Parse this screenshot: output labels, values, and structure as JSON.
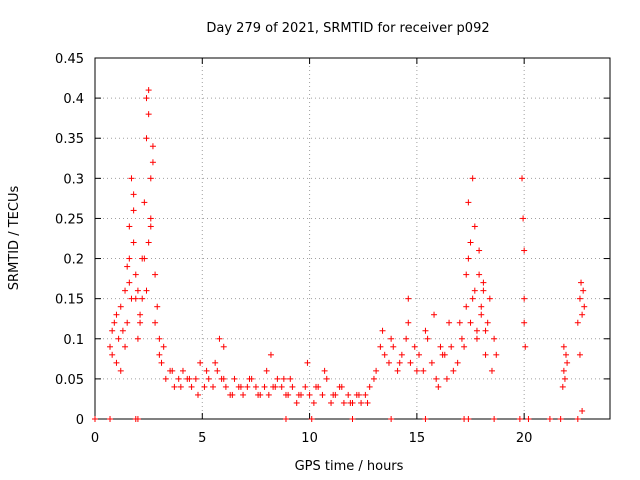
{
  "chart_data": {
    "type": "scatter",
    "title": "Day 279 of 2021, SRMTID for receiver p092",
    "xlabel": "GPS time / hours",
    "ylabel": "SRMTID / TECUs",
    "xlim": [
      0,
      24
    ],
    "ylim": [
      0,
      0.45
    ],
    "grid": true,
    "marker": "+",
    "marker_color": "#ff0000",
    "x_ticks": [
      0,
      5,
      10,
      15,
      20
    ],
    "x_tick_labels": [
      "0",
      "5",
      "10",
      "15",
      "20"
    ],
    "y_ticks": [
      0,
      0.05,
      0.1,
      0.15,
      0.2,
      0.25,
      0.3,
      0.35,
      0.4,
      0.45
    ],
    "y_tick_labels": [
      "0",
      "0.05",
      "0.1",
      "0.15",
      "0.2",
      "0.25",
      "0.3",
      "0.35",
      "0.4",
      "0.45"
    ],
    "series": [
      {
        "name": "SRMTID",
        "x": [
          0.7,
          0.8,
          0.9,
          1.0,
          1.1,
          1.2,
          1.3,
          1.4,
          1.5,
          1.6,
          1.7,
          1.8,
          1.9,
          2.0,
          2.1,
          2.2,
          2.3,
          2.4,
          2.5,
          2.6,
          2.7,
          2.8,
          2.9,
          3.0,
          0.8,
          1.0,
          1.2,
          1.4,
          1.6,
          1.8,
          2.0,
          2.2,
          2.4,
          2.6,
          2.8,
          3.0,
          1.5,
          1.7,
          1.9,
          2.1,
          2.3,
          2.5,
          2.7,
          1.6,
          1.8,
          2.4,
          2.5,
          2.6,
          3.1,
          3.3,
          3.5,
          3.7,
          3.9,
          4.1,
          4.3,
          4.5,
          4.7,
          4.9,
          5.1,
          5.3,
          5.5,
          5.7,
          5.9,
          6.1,
          6.3,
          6.5,
          6.7,
          6.9,
          7.1,
          7.3,
          7.5,
          7.7,
          7.9,
          8.1,
          8.3,
          8.5,
          8.7,
          8.9,
          3.2,
          3.6,
          4.0,
          4.4,
          4.8,
          5.2,
          5.6,
          6.0,
          6.4,
          6.8,
          7.2,
          7.6,
          8.0,
          8.4,
          8.8,
          5.8,
          6.0,
          8.2,
          9.0,
          9.2,
          9.4,
          9.6,
          9.8,
          10.0,
          10.2,
          10.4,
          10.6,
          10.8,
          11.0,
          11.2,
          11.4,
          11.6,
          11.8,
          12.0,
          12.2,
          12.4,
          12.6,
          12.8,
          13.0,
          9.1,
          9.5,
          9.9,
          10.3,
          10.7,
          11.1,
          11.5,
          11.9,
          12.3,
          12.7,
          13.1,
          13.3,
          13.5,
          13.7,
          13.9,
          14.1,
          14.3,
          14.5,
          14.7,
          14.9,
          15.1,
          15.3,
          15.5,
          15.7,
          15.9,
          16.1,
          16.3,
          16.5,
          16.7,
          16.9,
          17.1,
          13.4,
          13.8,
          14.2,
          14.6,
          15.0,
          15.4,
          15.8,
          16.2,
          16.6,
          17.0,
          14.6,
          16.0,
          16.4,
          17.2,
          17.3,
          17.4,
          17.5,
          17.6,
          17.7,
          17.8,
          17.9,
          18.0,
          18.1,
          18.2,
          18.3,
          18.4,
          18.5,
          18.6,
          18.7,
          17.3,
          17.4,
          17.5,
          17.6,
          17.7,
          17.8,
          17.9,
          18.0,
          18.1,
          18.2,
          19.9,
          19.95,
          20.0,
          20.0,
          20.0,
          20.05,
          21.8,
          21.85,
          21.9,
          21.95,
          22.0,
          21.85,
          22.5,
          22.6,
          22.65,
          22.7,
          22.75,
          22.8,
          22.6,
          22.7,
          0.0,
          0.7,
          1.9,
          2.0,
          8.9,
          10.1,
          12.0,
          13.8,
          15.4,
          17.2,
          17.4,
          18.6,
          19.8,
          20.2,
          21.2,
          21.7,
          22.5
        ],
        "y": [
          0.09,
          0.08,
          0.12,
          0.07,
          0.1,
          0.14,
          0.11,
          0.16,
          0.12,
          0.2,
          0.15,
          0.22,
          0.18,
          0.16,
          0.12,
          0.15,
          0.2,
          0.16,
          0.38,
          0.25,
          0.32,
          0.18,
          0.14,
          0.1,
          0.11,
          0.13,
          0.06,
          0.09,
          0.24,
          0.28,
          0.1,
          0.2,
          0.35,
          0.3,
          0.12,
          0.08,
          0.19,
          0.3,
          0.15,
          0.13,
          0.27,
          0.41,
          0.34,
          0.17,
          0.26,
          0.4,
          0.22,
          0.24,
          0.07,
          0.05,
          0.06,
          0.04,
          0.05,
          0.06,
          0.05,
          0.04,
          0.05,
          0.07,
          0.04,
          0.05,
          0.04,
          0.06,
          0.05,
          0.04,
          0.03,
          0.05,
          0.04,
          0.03,
          0.04,
          0.05,
          0.04,
          0.03,
          0.04,
          0.03,
          0.04,
          0.05,
          0.04,
          0.03,
          0.09,
          0.06,
          0.04,
          0.05,
          0.03,
          0.06,
          0.07,
          0.05,
          0.03,
          0.04,
          0.05,
          0.03,
          0.06,
          0.04,
          0.05,
          0.1,
          0.09,
          0.08,
          0.03,
          0.04,
          0.02,
          0.03,
          0.04,
          0.03,
          0.02,
          0.04,
          0.03,
          0.05,
          0.02,
          0.03,
          0.04,
          0.02,
          0.03,
          0.02,
          0.03,
          0.02,
          0.03,
          0.04,
          0.05,
          0.05,
          0.03,
          0.07,
          0.04,
          0.06,
          0.03,
          0.04,
          0.02,
          0.03,
          0.02,
          0.06,
          0.09,
          0.08,
          0.07,
          0.09,
          0.06,
          0.08,
          0.1,
          0.07,
          0.09,
          0.08,
          0.06,
          0.1,
          0.07,
          0.05,
          0.09,
          0.08,
          0.12,
          0.06,
          0.07,
          0.1,
          0.11,
          0.1,
          0.07,
          0.12,
          0.06,
          0.11,
          0.13,
          0.08,
          0.09,
          0.12,
          0.15,
          0.04,
          0.05,
          0.09,
          0.14,
          0.2,
          0.12,
          0.3,
          0.16,
          0.1,
          0.21,
          0.14,
          0.17,
          0.08,
          0.12,
          0.15,
          0.06,
          0.1,
          0.08,
          0.18,
          0.27,
          0.22,
          0.15,
          0.24,
          0.11,
          0.18,
          0.13,
          0.16,
          0.11,
          0.3,
          0.25,
          0.21,
          0.15,
          0.12,
          0.09,
          0.04,
          0.06,
          0.05,
          0.08,
          0.07,
          0.09,
          0.12,
          0.15,
          0.17,
          0.13,
          0.16,
          0.14,
          0.08,
          0.01,
          0.0,
          0.0,
          0.0,
          0.0,
          0.0,
          0.0,
          0.0,
          0.0,
          0.0,
          0.0,
          0.0,
          0.0,
          0.0,
          0.0,
          0.0,
          0.0,
          0.0
        ]
      }
    ]
  }
}
